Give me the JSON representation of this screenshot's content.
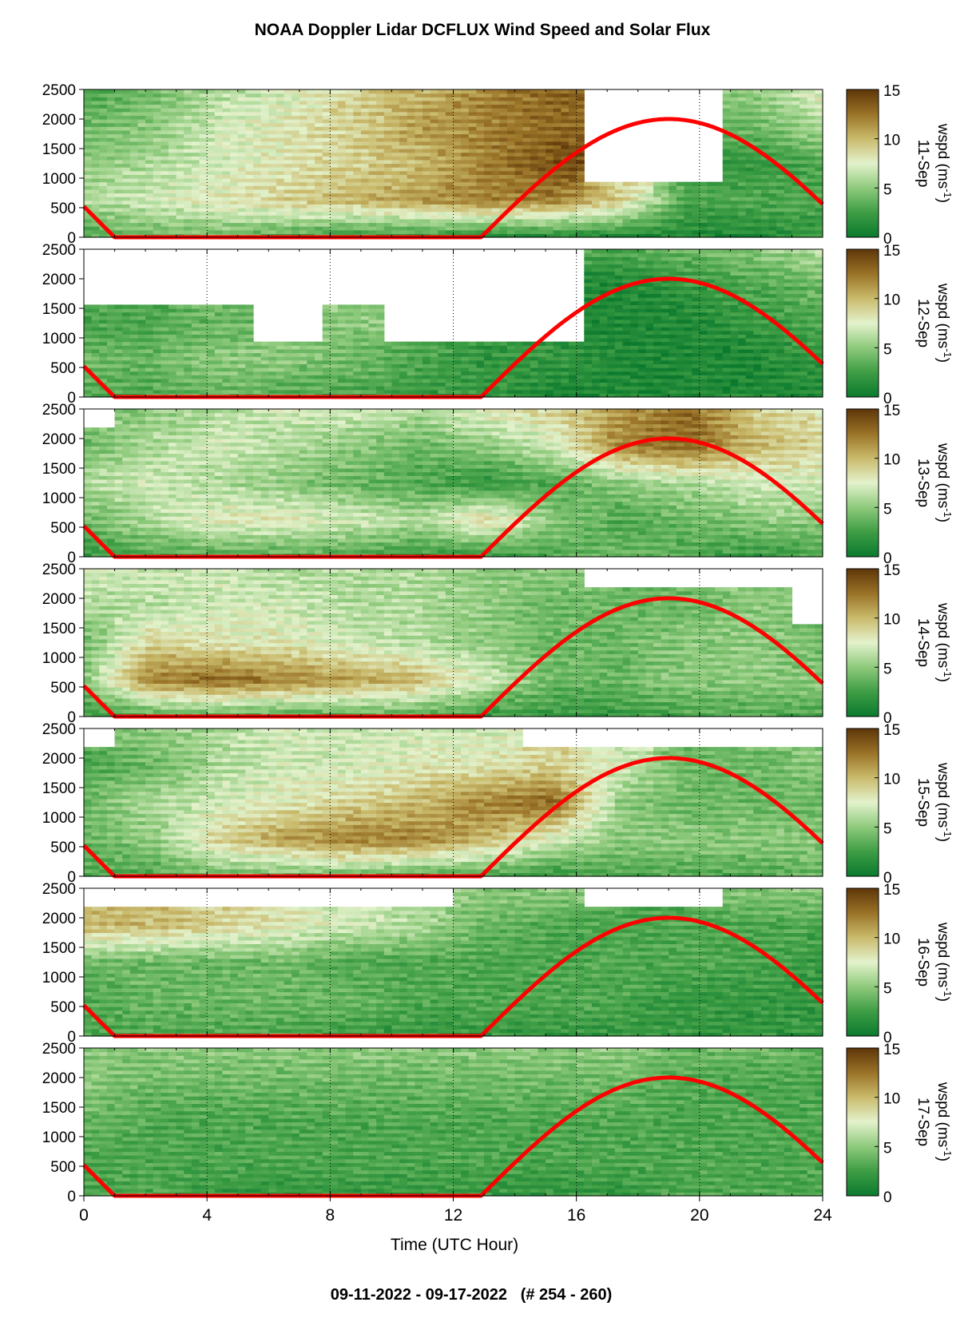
{
  "chart_data": {
    "type": "heatmap",
    "title": "NOAA Doppler Lidar DCFLUX Wind Speed and Solar Flux",
    "subtitle": "09-11-2022 - 09-17-2022   (# 254 - 260)",
    "xlabel": "Time (UTC Hour)",
    "xlim": [
      0,
      24
    ],
    "xticks": [
      "0",
      "4",
      "8",
      "12",
      "16",
      "20",
      "24"
    ],
    "ylim": [
      0,
      2500
    ],
    "yticks": [
      "0",
      "500",
      "1000",
      "1500",
      "2000",
      "2500"
    ],
    "colorbar": {
      "label_prefix": "wspd (ms",
      "label_exp": "-1",
      "label_suffix": ")",
      "ticks": [
        "0",
        "5",
        "10",
        "15"
      ],
      "range": [
        0,
        15
      ],
      "colors": [
        "#0b7a2e",
        "#3f9e45",
        "#8cc97a",
        "#e3f2cc",
        "#c9b96a",
        "#9a7428",
        "#5e3608"
      ]
    },
    "solar_flux_line": {
      "color": "#ff0000",
      "description_points": [
        [
          0,
          520
        ],
        [
          1,
          0
        ],
        [
          12.9,
          0
        ],
        [
          19,
          2000
        ],
        [
          24,
          700
        ]
      ]
    },
    "panels": [
      {
        "day": "11-Sep",
        "wspd_grid_hint": [
          [
            3,
            4,
            4,
            3,
            2,
            2,
            1,
            1,
            1,
            1,
            1,
            2
          ],
          [
            6,
            7,
            8,
            9,
            10,
            11,
            12,
            12,
            9,
            3,
            3,
            3
          ],
          [
            5,
            6,
            7,
            8,
            9,
            10,
            12,
            14,
            0,
            0,
            2,
            3
          ],
          [
            4,
            5,
            7,
            8,
            9,
            11,
            12,
            13,
            0,
            0,
            4,
            6
          ],
          [
            3,
            4,
            6,
            7,
            9,
            10,
            12,
            13,
            0,
            0,
            5,
            8
          ]
        ]
      },
      {
        "day": "12-Sep",
        "wspd_grid_hint": [
          [
            3,
            3,
            4,
            3,
            3,
            2,
            2,
            1,
            1,
            1,
            1,
            1
          ],
          [
            4,
            4,
            5,
            5,
            4,
            3,
            2,
            2,
            1,
            1,
            1,
            2
          ],
          [
            3,
            3,
            4,
            0,
            5,
            0,
            0,
            0,
            1,
            1,
            2,
            3
          ],
          [
            0,
            0,
            0,
            0,
            0,
            0,
            0,
            0,
            1,
            2,
            3,
            4
          ],
          [
            0,
            0,
            0,
            0,
            0,
            0,
            0,
            0,
            3,
            4,
            5,
            6
          ]
        ]
      },
      {
        "day": "13-Sep",
        "wspd_grid_hint": [
          [
            2,
            3,
            3,
            3,
            3,
            2,
            2,
            3,
            4,
            3,
            2,
            3
          ],
          [
            4,
            6,
            8,
            8,
            7,
            6,
            9,
            5,
            3,
            4,
            5,
            5
          ],
          [
            6,
            7,
            6,
            5,
            4,
            3,
            2,
            3,
            5,
            6,
            7,
            7
          ],
          [
            4,
            6,
            7,
            6,
            5,
            4,
            5,
            7,
            12,
            13,
            10,
            9
          ],
          [
            0,
            5,
            6,
            7,
            7,
            6,
            8,
            9,
            11,
            13,
            9,
            8
          ]
        ]
      },
      {
        "day": "14-Sep",
        "wspd_grid_hint": [
          [
            2,
            3,
            3,
            3,
            3,
            3,
            2,
            2,
            2,
            3,
            3,
            3
          ],
          [
            5,
            12,
            13,
            12,
            11,
            10,
            7,
            4,
            4,
            5,
            5,
            5
          ],
          [
            4,
            9,
            8,
            8,
            7,
            6,
            5,
            4,
            4,
            5,
            5,
            4
          ],
          [
            6,
            6,
            7,
            7,
            6,
            6,
            5,
            4,
            4,
            4,
            5,
            0
          ],
          [
            7,
            7,
            7,
            6,
            6,
            6,
            5,
            5,
            0,
            0,
            0,
            0
          ]
        ]
      },
      {
        "day": "15-Sep",
        "wspd_grid_hint": [
          [
            3,
            3,
            4,
            4,
            4,
            3,
            3,
            2,
            3,
            3,
            3,
            4
          ],
          [
            4,
            5,
            9,
            11,
            12,
            12,
            10,
            7,
            5,
            5,
            5,
            5
          ],
          [
            4,
            6,
            7,
            8,
            9,
            10,
            12,
            13,
            5,
            4,
            4,
            4
          ],
          [
            3,
            4,
            6,
            7,
            7,
            8,
            8,
            9,
            7,
            4,
            4,
            5
          ],
          [
            0,
            5,
            6,
            7,
            7,
            7,
            7,
            0,
            0,
            0,
            0,
            0
          ]
        ]
      },
      {
        "day": "16-Sep",
        "wspd_grid_hint": [
          [
            3,
            3,
            3,
            3,
            2,
            2,
            2,
            2,
            2,
            2,
            2,
            2
          ],
          [
            3,
            4,
            4,
            4,
            4,
            3,
            3,
            3,
            3,
            2,
            2,
            2
          ],
          [
            4,
            4,
            4,
            4,
            3,
            3,
            3,
            3,
            3,
            3,
            3,
            2
          ],
          [
            10,
            10,
            9,
            8,
            7,
            6,
            4,
            3,
            3,
            3,
            3,
            3
          ],
          [
            0,
            0,
            0,
            0,
            0,
            0,
            5,
            5,
            0,
            0,
            5,
            5
          ]
        ]
      },
      {
        "day": "17-Sep",
        "wspd_grid_hint": [
          [
            3,
            3,
            2,
            2,
            2,
            2,
            2,
            2,
            2,
            3,
            3,
            3
          ],
          [
            3,
            3,
            3,
            3,
            3,
            3,
            3,
            3,
            3,
            3,
            3,
            3
          ],
          [
            4,
            3,
            3,
            3,
            3,
            3,
            3,
            3,
            3,
            3,
            3,
            3
          ],
          [
            5,
            4,
            4,
            4,
            4,
            4,
            4,
            4,
            4,
            3,
            3,
            3
          ],
          [
            5,
            5,
            5,
            5,
            5,
            5,
            5,
            5,
            5,
            4,
            4,
            4
          ]
        ]
      }
    ]
  }
}
